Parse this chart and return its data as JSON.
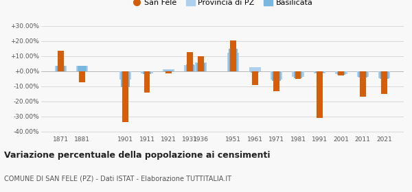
{
  "years": [
    1871,
    1881,
    1901,
    1911,
    1921,
    1931,
    1936,
    1951,
    1961,
    1971,
    1981,
    1991,
    2001,
    2011,
    2021
  ],
  "san_fele": [
    13.5,
    -7.5,
    -34.0,
    -14.0,
    -1.5,
    12.5,
    10.0,
    20.5,
    -9.0,
    -13.5,
    -5.0,
    -31.0,
    -3.0,
    -17.0,
    -15.0
  ],
  "provincia_pz": [
    3.5,
    3.5,
    -5.5,
    -1.5,
    1.5,
    4.0,
    6.0,
    12.0,
    2.5,
    -5.5,
    -3.5,
    -1.5,
    -2.0,
    -3.5,
    -4.5
  ],
  "basilicata": [
    3.5,
    3.5,
    -10.5,
    -2.0,
    0.5,
    4.5,
    5.5,
    15.0,
    -1.0,
    -6.5,
    -4.5,
    -1.0,
    -2.5,
    -4.0,
    -5.0
  ],
  "san_fele_color": "#d45e0a",
  "provincia_color": "#aed0ec",
  "basilicata_color": "#78b8e0",
  "background_color": "#f8f8f8",
  "grid_color": "#cccccc",
  "title": "Variazione percentuale della popolazione ai censimenti",
  "subtitle": "COMUNE DI SAN FELE (PZ) - Dati ISTAT - Elaborazione TUTTITALIA.IT",
  "ylim": [
    -42,
    32
  ],
  "yticks": [
    -40,
    -30,
    -20,
    -10,
    0,
    10,
    20,
    30
  ],
  "legend_labels": [
    "San Fele",
    "Provincia di PZ",
    "Basilicata"
  ]
}
